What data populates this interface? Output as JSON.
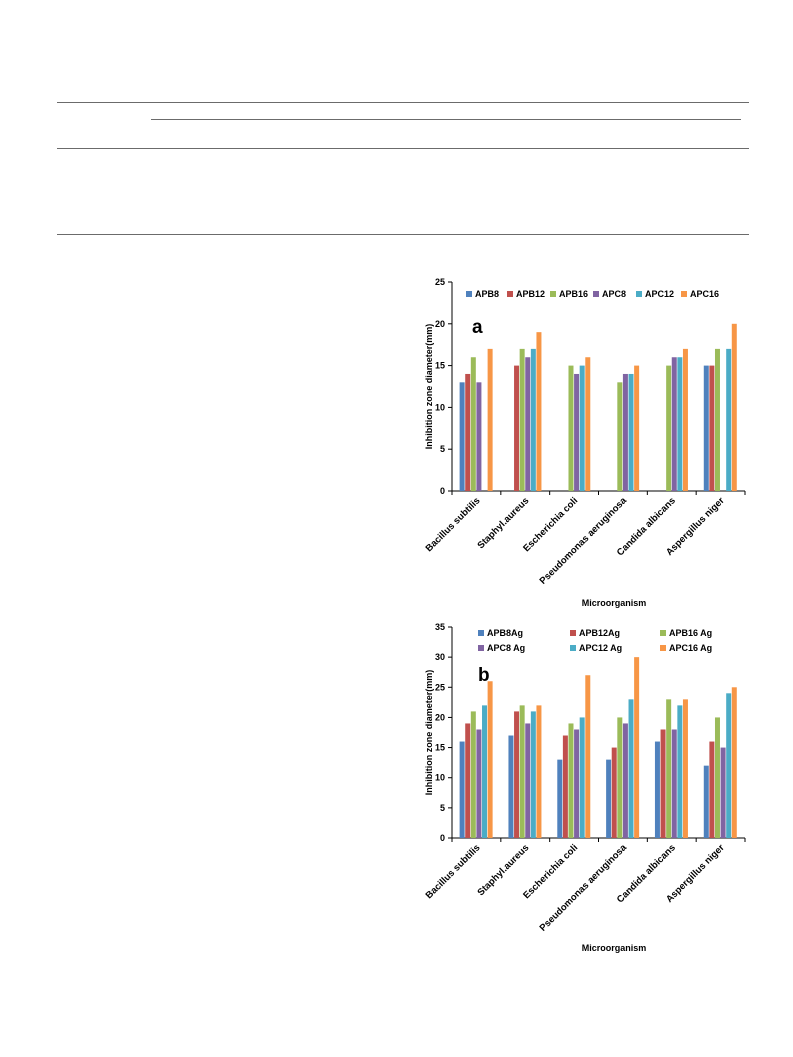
{
  "chart_data": [
    {
      "type": "bar",
      "panel_label": "a",
      "categories": [
        "Bacillus subtilis",
        "Staphyl.aureus",
        "Escherichia coli",
        "Pseudomonas aeruginosa",
        "Candida albicans",
        "Aspergillus niger"
      ],
      "series": [
        {
          "name": "APB8",
          "color": "#4f81bd",
          "values": [
            13,
            0,
            0,
            0,
            0,
            15
          ]
        },
        {
          "name": "APB12",
          "color": "#c0504d",
          "values": [
            14,
            15,
            0,
            0,
            0,
            15
          ]
        },
        {
          "name": "APB16",
          "color": "#9bbb59",
          "values": [
            16,
            17,
            15,
            13,
            15,
            17
          ]
        },
        {
          "name": "APC8",
          "color": "#8064a2",
          "values": [
            13,
            16,
            14,
            14,
            16,
            0
          ]
        },
        {
          "name": "APC12",
          "color": "#4bacc6",
          "values": [
            0,
            17,
            15,
            14,
            16,
            17
          ]
        },
        {
          "name": "APC16",
          "color": "#f79646",
          "values": [
            17,
            19,
            16,
            15,
            17,
            20
          ]
        }
      ],
      "ylabel": "Inhibition zone diameter(mm)",
      "xlabel": "Microorganism",
      "ylim": [
        0,
        25
      ],
      "yticks": [
        "0",
        "5",
        "10",
        "15",
        "20",
        "25"
      ],
      "legend_position": "top",
      "grid": false
    },
    {
      "type": "bar",
      "panel_label": "b",
      "categories": [
        "Bacillus subtilis",
        "Staphyl.aureus",
        "Escherichia coli",
        "Pseudomonas aeruginosa",
        "Candida albicans",
        "Aspergillus niger"
      ],
      "series": [
        {
          "name": "APB8Ag",
          "color": "#4f81bd",
          "values": [
            16,
            17,
            13,
            13,
            16,
            12
          ]
        },
        {
          "name": "APB12Ag",
          "color": "#c0504d",
          "values": [
            19,
            21,
            17,
            15,
            18,
            16
          ]
        },
        {
          "name": "APB16 Ag",
          "color": "#9bbb59",
          "values": [
            21,
            22,
            19,
            20,
            23,
            20
          ]
        },
        {
          "name": "APC8 Ag",
          "color": "#8064a2",
          "values": [
            18,
            19,
            18,
            19,
            18,
            15
          ]
        },
        {
          "name": "APC12 Ag",
          "color": "#4bacc6",
          "values": [
            22,
            21,
            20,
            23,
            22,
            24
          ]
        },
        {
          "name": "APC16 Ag",
          "color": "#f79646",
          "values": [
            26,
            22,
            27,
            30,
            23,
            25
          ]
        }
      ],
      "ylabel": "Inhibition zone diameter(mm)",
      "xlabel": "Microorganism",
      "ylim": [
        0,
        35
      ],
      "yticks": [
        "0",
        "5",
        "10",
        "15",
        "20",
        "25",
        "30",
        "35"
      ],
      "legend_position": "top",
      "grid": false
    }
  ]
}
